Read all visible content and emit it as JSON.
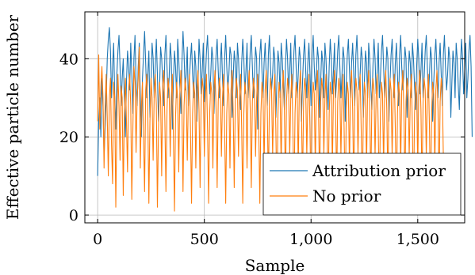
{
  "chart_data": {
    "type": "line",
    "title": "",
    "xlabel": "Sample",
    "ylabel": "Effective particle number",
    "xlim": [
      -60,
      1720
    ],
    "ylim": [
      -2,
      52
    ],
    "x_ticks": [
      0,
      500,
      1000,
      1500
    ],
    "x_tick_labels": [
      "0",
      "500",
      "1,000",
      "1,500"
    ],
    "y_ticks": [
      0,
      20,
      40
    ],
    "y_tick_labels": [
      "0",
      "20",
      "40"
    ],
    "grid": true,
    "legend_position": "bottom-right",
    "series": [
      {
        "name": "Attribution prior",
        "color": "#1f77b4",
        "x_start": 0,
        "x_step": 5,
        "values": [
          10,
          24,
          30,
          20,
          35,
          28,
          15,
          22,
          30,
          40,
          45,
          48,
          42,
          30,
          38,
          44,
          30,
          22,
          36,
          42,
          46,
          38,
          28,
          35,
          40,
          30,
          20,
          34,
          42,
          38,
          32,
          44,
          36,
          26,
          40,
          46,
          34,
          28,
          38,
          44,
          30,
          20,
          35,
          41,
          47,
          39,
          30,
          36,
          42,
          25,
          33,
          44,
          40,
          30,
          38,
          45,
          36,
          24,
          32,
          43,
          40,
          34,
          28,
          41,
          46,
          38,
          30,
          35,
          44,
          40,
          22,
          34,
          42,
          38,
          30,
          45,
          40,
          33,
          26,
          39,
          47,
          41,
          32,
          36,
          43,
          28,
          35,
          40,
          44,
          36,
          30,
          42,
          38,
          24,
          33,
          45,
          40,
          31,
          37,
          44,
          29,
          35,
          42,
          46,
          38,
          31,
          36,
          43,
          40,
          26,
          34,
          41,
          45,
          37,
          30,
          39,
          44,
          35,
          28,
          40,
          46,
          38,
          32,
          36,
          43,
          41,
          25,
          35,
          42,
          39,
          30,
          44,
          40,
          33,
          27,
          39,
          45,
          40,
          31,
          37,
          44,
          30,
          35,
          42,
          46,
          38,
          30,
          36,
          43,
          40,
          22,
          34,
          41,
          45,
          37,
          30,
          39,
          44,
          36,
          28,
          41,
          46,
          38,
          32,
          36,
          43,
          40,
          25,
          34,
          42,
          39,
          30,
          44,
          40,
          33,
          27,
          38,
          45,
          40,
          31,
          37,
          44,
          30,
          35,
          42,
          46,
          38,
          30,
          36,
          43,
          40,
          24,
          34,
          41,
          45,
          37,
          30,
          39,
          44,
          36,
          28,
          41,
          46,
          38,
          32,
          36,
          43,
          40,
          25,
          34,
          42,
          39,
          30,
          44,
          40,
          33,
          27,
          38,
          45,
          40,
          31,
          37,
          44,
          30,
          35,
          42,
          46,
          38,
          30,
          36,
          43,
          40,
          24,
          34,
          41,
          45,
          37,
          30,
          39,
          44,
          36,
          28,
          41,
          46,
          38,
          32,
          36,
          43,
          40,
          25,
          34,
          42,
          39,
          30,
          44,
          40,
          33,
          27,
          38,
          45,
          40,
          31,
          37,
          44,
          30,
          35,
          42,
          46,
          38,
          30,
          36,
          43,
          40,
          24,
          34,
          41,
          45,
          37,
          30,
          39,
          44,
          36,
          28,
          41,
          46,
          38,
          32,
          36,
          43,
          40,
          25,
          34,
          42,
          39,
          30,
          44,
          40,
          33,
          27,
          38,
          45,
          40,
          31,
          37,
          44,
          30,
          35,
          42,
          46,
          38,
          30,
          36,
          43,
          40,
          24,
          34,
          41,
          45,
          37,
          30,
          39,
          44,
          36,
          28,
          41,
          46,
          38,
          32,
          36,
          43,
          40,
          25,
          34,
          42,
          39,
          30,
          44,
          40,
          33,
          27,
          38,
          45,
          40,
          31,
          37,
          44,
          30,
          35,
          42,
          46,
          38,
          20
        ]
      },
      {
        "name": "No prior",
        "color": "#ff7f0e",
        "x_start": 0,
        "x_step": 5,
        "values": [
          24,
          41,
          22,
          33,
          38,
          30,
          12,
          28,
          36,
          25,
          10,
          30,
          35,
          18,
          8,
          34,
          30,
          2,
          24,
          36,
          28,
          14,
          33,
          30,
          5,
          26,
          35,
          24,
          11,
          32,
          36,
          28,
          4,
          22,
          38,
          34,
          16,
          30,
          35,
          43,
          12,
          28,
          34,
          20,
          6,
          32,
          36,
          26,
          3,
          24,
          35,
          30,
          14,
          31,
          36,
          28,
          2,
          22,
          34,
          30,
          10,
          33,
          37,
          24,
          6,
          27,
          35,
          32,
          15,
          30,
          36,
          20,
          1,
          25,
          34,
          30,
          11,
          31,
          37,
          27,
          6,
          28,
          35,
          31,
          14,
          30,
          36,
          22,
          3,
          26,
          34,
          31,
          12,
          32,
          37,
          27,
          7,
          29,
          35,
          32,
          15,
          30,
          36,
          22,
          3,
          26,
          34,
          31,
          12,
          32,
          37,
          27,
          7,
          29,
          35,
          32,
          15,
          30,
          36,
          22,
          3,
          26,
          34,
          31,
          12,
          32,
          37,
          27,
          7,
          29,
          35,
          32,
          15,
          30,
          36,
          22,
          3,
          26,
          34,
          31,
          12,
          32,
          37,
          27,
          7,
          29,
          35,
          32,
          15,
          30,
          36,
          22,
          3,
          26,
          34,
          31,
          12,
          32,
          37,
          27,
          7,
          29,
          35,
          32,
          15,
          30,
          36,
          22,
          3,
          26,
          34,
          31,
          12,
          32,
          37,
          27,
          7,
          29,
          35,
          32,
          15,
          30,
          36,
          22,
          3,
          26,
          34,
          31,
          12,
          32,
          37,
          27,
          7,
          29,
          35,
          32,
          15,
          30,
          36,
          22,
          3,
          26,
          34,
          31,
          12,
          32,
          37,
          27,
          7,
          29,
          35,
          32,
          15,
          30,
          36,
          22,
          3,
          26,
          34,
          31,
          12,
          32,
          37,
          27,
          7,
          29,
          35,
          32,
          15,
          30,
          36,
          22,
          3,
          26,
          34,
          31,
          12,
          32,
          37,
          27,
          7,
          29,
          35,
          32,
          15,
          30,
          36,
          22,
          3,
          26,
          34,
          31,
          12,
          32,
          37,
          27,
          7,
          29,
          35,
          32,
          15,
          30,
          36,
          22,
          3,
          26,
          34,
          31,
          12,
          32,
          37,
          27,
          7,
          29,
          35,
          32,
          15,
          30,
          36,
          22,
          3,
          26,
          34,
          31,
          12,
          32,
          37,
          27,
          7,
          29,
          35,
          32,
          15,
          30,
          36,
          22,
          3,
          26,
          34,
          31,
          12,
          32,
          37,
          27,
          7,
          29,
          35,
          32,
          15,
          30,
          36,
          22,
          3,
          26,
          34,
          31,
          12,
          32,
          37,
          27,
          7,
          29,
          35,
          32,
          15
        ]
      }
    ]
  }
}
